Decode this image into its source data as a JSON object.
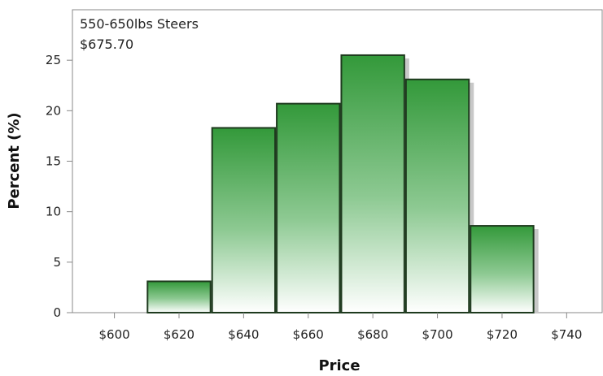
{
  "chart_data": {
    "type": "bar",
    "subtype": "histogram",
    "inset": {
      "line1": "550-650lbs Steers",
      "line2": "$675.70"
    },
    "xlabel": "Price",
    "ylabel": "Percent (%)",
    "x_ticks": [
      "$600",
      "$620",
      "$640",
      "$660",
      "$680",
      "$700",
      "$720",
      "$740"
    ],
    "x_tick_values": [
      600,
      620,
      640,
      660,
      680,
      700,
      720,
      740
    ],
    "y_ticks": [
      "0",
      "5",
      "10",
      "15",
      "20",
      "25"
    ],
    "y_tick_values": [
      0,
      5,
      10,
      15,
      20,
      25
    ],
    "xlim": [
      587,
      751
    ],
    "ylim": [
      0,
      30
    ],
    "bin_width": 20,
    "bins": [
      {
        "center": 620,
        "value": 3.1
      },
      {
        "center": 640,
        "value": 18.3
      },
      {
        "center": 660,
        "value": 20.7
      },
      {
        "center": 680,
        "value": 25.5
      },
      {
        "center": 700,
        "value": 23.1
      },
      {
        "center": 720,
        "value": 8.6
      }
    ],
    "grid": false,
    "colors": {
      "bar_top": "#33993a",
      "bar_bottom": "#ffffff",
      "bar_outline": "#1e3a1e",
      "shadow": "#c8c8c8",
      "axis": "#888888"
    }
  }
}
